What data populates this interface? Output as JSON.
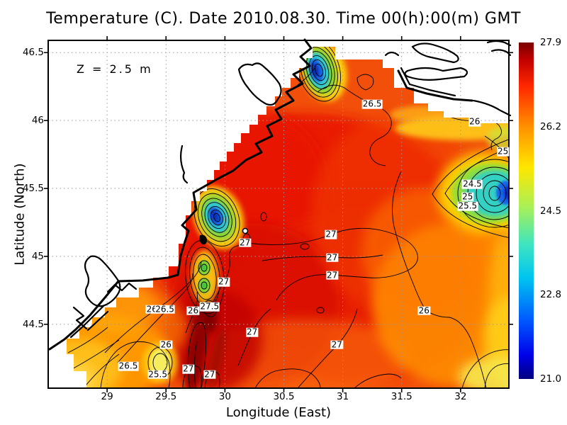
{
  "title": "Temperature (C). Date 2010.08.30. Time 00(h):00(m) GMT",
  "annotation": "Z = 2.5 m",
  "chart_data": {
    "type": "heatmap",
    "subtype": "filled-contour-map",
    "variable": "Temperature",
    "units": "C",
    "depth_label": "Z = 2.5 m",
    "date": "2010.08.30",
    "time": "00(h):00(m) GMT",
    "title": "Temperature (C). Date 2010.08.30. Time 00(h):00(m) GMT",
    "xlabel": "Longitude (East)",
    "ylabel": "Latitude (North)",
    "xlim": [
      28.5,
      32.41
    ],
    "ylim": [
      44.03,
      46.59
    ],
    "x_ticks": [
      29,
      29.5,
      30,
      30.5,
      31,
      31.5,
      32
    ],
    "x_tick_labels": [
      "29",
      "29.5",
      "30",
      "30.5",
      "31",
      "31.5",
      "32"
    ],
    "y_ticks": [
      44.5,
      45,
      45.5,
      46,
      46.5
    ],
    "y_tick_labels": [
      "44.5",
      "45",
      "45.5",
      "46",
      "46.5"
    ],
    "grid": "dotted gray at every tick",
    "land": "white with thick black coastline (north-west Black Sea shelf)",
    "colorbar": {
      "min": 21.0,
      "max": 27.9,
      "tick_labels": [
        "27.9",
        "26.2",
        "24.5",
        "22.8",
        "21.0"
      ],
      "colormap": "jet",
      "top_color": "#7a0000",
      "bottom_color": "#00007f"
    },
    "contour_interval": 0.5,
    "contour_labels": [
      {
        "value": "26.5",
        "lon": 31.25,
        "lat": 46.12
      },
      {
        "value": "26",
        "lon": 32.12,
        "lat": 45.99
      },
      {
        "value": "25",
        "lon": 32.36,
        "lat": 45.77
      },
      {
        "value": "24.5",
        "lon": 32.1,
        "lat": 45.53
      },
      {
        "value": "25",
        "lon": 32.06,
        "lat": 45.44
      },
      {
        "value": "25.5",
        "lon": 32.06,
        "lat": 45.37
      },
      {
        "value": "27",
        "lon": 30.17,
        "lat": 45.1
      },
      {
        "value": "27",
        "lon": 30.9,
        "lat": 45.16
      },
      {
        "value": "27",
        "lon": 30.91,
        "lat": 44.99
      },
      {
        "value": "27",
        "lon": 30.91,
        "lat": 44.86
      },
      {
        "value": "27",
        "lon": 29.99,
        "lat": 44.81
      },
      {
        "value": "27.5",
        "lon": 29.87,
        "lat": 44.63
      },
      {
        "value": "26",
        "lon": 29.38,
        "lat": 44.61
      },
      {
        "value": "26.5",
        "lon": 29.49,
        "lat": 44.61
      },
      {
        "value": "26",
        "lon": 29.73,
        "lat": 44.6
      },
      {
        "value": "26",
        "lon": 29.5,
        "lat": 44.35
      },
      {
        "value": "26.5",
        "lon": 29.18,
        "lat": 44.19
      },
      {
        "value": "25.5",
        "lon": 29.43,
        "lat": 44.13
      },
      {
        "value": "27",
        "lon": 29.69,
        "lat": 44.17
      },
      {
        "value": "27",
        "lon": 29.87,
        "lat": 44.13
      },
      {
        "value": "27",
        "lon": 30.23,
        "lat": 44.44
      },
      {
        "value": "27",
        "lon": 30.95,
        "lat": 44.35
      },
      {
        "value": "26",
        "lon": 31.69,
        "lat": 44.6
      }
    ],
    "features": [
      {
        "name": "cold upwelling spot near coast",
        "lon": 30.81,
        "lat": 46.38,
        "approx_temp_c": 21.5
      },
      {
        "name": "cold coastal upwelling spot",
        "lon": 29.93,
        "lat": 45.28,
        "approx_temp_c": 22.0
      },
      {
        "name": "cold eddy at eastern edge",
        "lon": 32.33,
        "lat": 45.47,
        "approx_temp_c": 22.0
      },
      {
        "name": "warm dark-red streak",
        "lon": 29.76,
        "lat": 44.43,
        "approx_temp_c": 27.8
      },
      {
        "name": "cool yellow patch",
        "lon": 29.44,
        "lat": 44.21,
        "approx_temp_c": 25.3
      },
      {
        "name": "station marker (small circle)",
        "lon": 30.17,
        "lat": 45.19
      }
    ],
    "field_summary": "Sea mostly 26.5-27.5 C (red/orange); cooler 24-26 C (yellow-green-cyan) toward east edge and SW corner; localized cold upwelling cores < 22 C near coasts"
  }
}
